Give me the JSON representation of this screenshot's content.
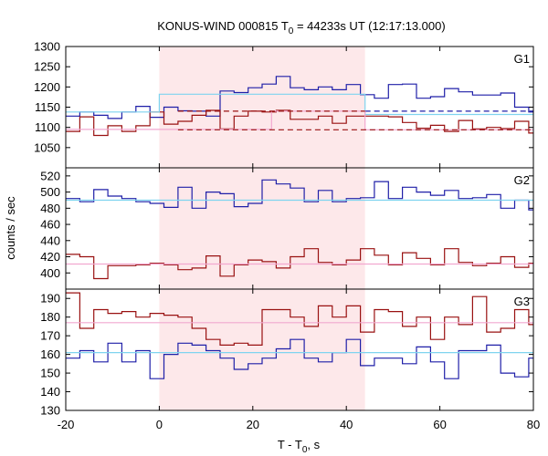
{
  "chart_data": {
    "type": "line",
    "title": "KONUS-WIND 000815 T",
    "title_sub": "0",
    "title_rest": " = 44233s UT (12:17:13.000)",
    "xlabel": "T - T",
    "xlabel_sub": "0",
    "xlabel_rest": ", s",
    "ylabel": "counts / sec",
    "xlim": [
      -20,
      80
    ],
    "x_ticks": [
      "-20",
      "0",
      "20",
      "40",
      "60",
      "80"
    ],
    "highlight_region": {
      "x0": 0,
      "x1": 44,
      "color": "#fde8ea"
    },
    "colors": {
      "blue": "#1f1fa8",
      "red": "#991111",
      "light_blue": "#7fd4ef",
      "pink": "#f2a8d0"
    },
    "panels": [
      {
        "label": "G1",
        "ylim": [
          1000,
          1300
        ],
        "y_ticks": [
          "1000",
          "1050",
          "1100",
          "1150",
          "1200",
          "1250",
          "1300"
        ],
        "series": [
          {
            "color": "#1f1fa8",
            "bin_width": 3,
            "x_start": -20,
            "values": [
              1128,
              1138,
              1130,
              1122,
              1138,
              1152,
              1125,
              1150,
              1141,
              1140,
              1128,
              1190,
              1186,
              1198,
              1207,
              1226,
              1198,
              1193,
              1200,
              1193,
              1206,
              1181,
              1172,
              1206,
              1207,
              1172,
              1176,
              1196,
              1188,
              1180,
              1180,
              1185,
              1150,
              1138,
              1140,
              1130,
              1172,
              1160,
              1135,
              1130,
              1124,
              1142,
              1162,
              1128,
              1124,
              1133,
              1158,
              1135,
              1136,
              1162,
              1138,
              1141,
              1138,
              1130
            ]
          },
          {
            "color": "#991111",
            "bin_width": 3,
            "x_start": -20,
            "values": [
              1090,
              1126,
              1080,
              1104,
              1090,
              1104,
              1138,
              1108,
              1115,
              1130,
              1142,
              1096,
              1128,
              1140,
              1138,
              1142,
              1120,
              1120,
              1128,
              1110,
              1128,
              1128,
              1128,
              1126,
              1112,
              1098,
              1105,
              1090,
              1117,
              1096,
              1100,
              1097,
              1115,
              1086,
              1094,
              1090,
              1084,
              1090,
              1058,
              1090,
              1096,
              1100,
              1093,
              1084,
              1098,
              1084,
              1094,
              1103,
              1082,
              1086,
              1100,
              1087,
              1090,
              1094
            ]
          }
        ],
        "fits": [
          {
            "color": "#7fd4ef",
            "style": "solid",
            "segments": [
              [
                -20,
                1138
              ],
              [
                0,
                1138
              ],
              [
                0,
                1182
              ],
              [
                44,
                1182
              ],
              [
                44,
                1132
              ],
              [
                80,
                1132
              ]
            ]
          },
          {
            "color": "#1f1fa8",
            "style": "dashed",
            "segments": [
              [
                44,
                1140
              ],
              [
                80,
                1140
              ]
            ]
          },
          {
            "color": "#f2a8d0",
            "style": "solid",
            "segments": [
              [
                -20,
                1095
              ],
              [
                24,
                1095
              ],
              [
                24,
                1140
              ],
              [
                44,
                1140
              ],
              [
                44,
                1094
              ],
              [
                80,
                1094
              ]
            ]
          },
          {
            "color": "#991111",
            "style": "dashed",
            "segments": [
              [
                4,
                1140
              ],
              [
                44,
                1140
              ]
            ]
          },
          {
            "color": "#991111",
            "style": "dashed",
            "segments": [
              [
                4,
                1094
              ],
              [
                80,
                1094
              ]
            ]
          }
        ]
      },
      {
        "label": "G2",
        "ylim": [
          380,
          530
        ],
        "y_ticks": [
          "380",
          "400",
          "420",
          "440",
          "460",
          "480",
          "500",
          "520"
        ],
        "series": [
          {
            "color": "#1f1fa8",
            "bin_width": 3,
            "x_start": -20,
            "values": [
              492,
              488,
              503,
              495,
              492,
              488,
              486,
              481,
              506,
              480,
              500,
              498,
              482,
              486,
              515,
              510,
              505,
              488,
              502,
              488,
              492,
              493,
              513,
              492,
              506,
              500,
              496,
              502,
              492,
              493,
              497,
              480,
              490,
              478,
              492,
              491,
              504,
              488,
              489,
              486,
              492,
              489,
              503,
              488,
              499,
              488,
              480,
              475,
              486,
              490,
              474,
              482,
              481,
              490
            ]
          },
          {
            "color": "#991111",
            "bin_width": 3,
            "x_start": -20,
            "values": [
              423,
              420,
              393,
              409,
              409,
              410,
              412,
              410,
              404,
              406,
              421,
              396,
              410,
              416,
              414,
              406,
              420,
              430,
              413,
              410,
              416,
              430,
              422,
              410,
              425,
              418,
              410,
              430,
              413,
              409,
              412,
              420,
              407,
              412,
              417,
              404,
              414,
              409,
              409,
              415,
              412,
              408,
              417,
              414,
              408,
              408,
              408,
              409,
              414,
              410,
              402,
              409,
              407,
              410
            ]
          }
        ],
        "fits": [
          {
            "color": "#7fd4ef",
            "style": "solid",
            "segments": [
              [
                -20,
                490
              ],
              [
                80,
                490
              ]
            ]
          },
          {
            "color": "#f2a8d0",
            "style": "solid",
            "segments": [
              [
                -20,
                411
              ],
              [
                80,
                411
              ]
            ]
          }
        ]
      },
      {
        "label": "G3",
        "ylim": [
          130,
          195
        ],
        "y_ticks": [
          "130",
          "140",
          "150",
          "160",
          "170",
          "180",
          "190"
        ],
        "series": [
          {
            "color": "#1f1fa8",
            "bin_width": 3,
            "x_start": -20,
            "values": [
              158,
              162,
              156,
              166,
              156,
              162,
              147,
              160,
              166,
              165,
              162,
              158,
              152,
              155,
              158,
              163,
              168,
              158,
              156,
              161,
              168,
              154,
              158,
              158,
              155,
              164,
              156,
              147,
              162,
              162,
              165,
              150,
              148,
              158,
              160,
              165,
              159,
              163,
              158,
              155,
              164,
              164,
              160,
              165,
              164,
              163,
              166,
              158,
              160,
              166,
              170,
              170,
              171,
              163
            ]
          },
          {
            "color": "#991111",
            "bin_width": 3,
            "x_start": -20,
            "values": [
              193,
              174,
              184,
              182,
              183,
              180,
              182,
              181,
              180,
              174,
              168,
              165,
              166,
              165,
              184,
              184,
              180,
              175,
              186,
              180,
              186,
              172,
              184,
              183,
              175,
              180,
              168,
              180,
              176,
              191,
              172,
              174,
              184,
              176,
              180,
              170,
              172,
              178,
              179,
              181,
              184,
              182,
              184,
              176,
              176,
              177,
              176,
              177,
              175,
              166,
              176,
              170,
              176,
              172
            ]
          }
        ],
        "fits": [
          {
            "color": "#7fd4ef",
            "style": "solid",
            "segments": [
              [
                -20,
                161
              ],
              [
                80,
                161
              ]
            ]
          },
          {
            "color": "#f2a8d0",
            "style": "solid",
            "segments": [
              [
                -20,
                177
              ],
              [
                80,
                177
              ]
            ]
          }
        ]
      }
    ]
  }
}
